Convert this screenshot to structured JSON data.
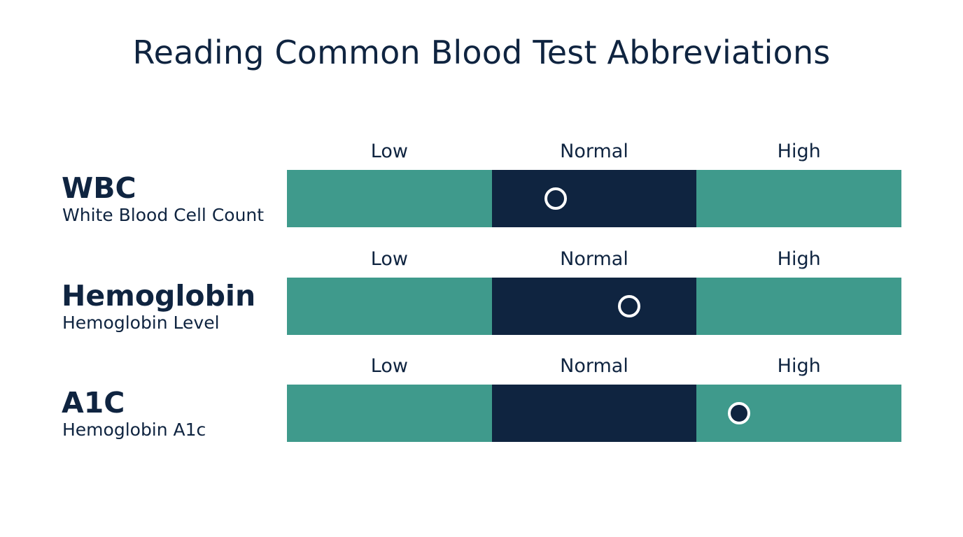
{
  "title": "Reading Common Blood Test Abbreviations",
  "colors": {
    "zone_outer": "#3f9a8c",
    "zone_normal": "#0f2440",
    "marker_ring": "#ffffff",
    "text": "#0f2440"
  },
  "zones": [
    "Low",
    "Normal",
    "High"
  ],
  "tests": [
    {
      "abbreviation": "WBC",
      "full_name": "White Blood Cell Count",
      "result_zone": "Normal",
      "result_position": 0.437
    },
    {
      "abbreviation": "Hemoglobin",
      "full_name": "Hemoglobin Level",
      "result_zone": "Normal",
      "result_position": 0.557
    },
    {
      "abbreviation": "A1C",
      "full_name": "Hemoglobin A1c",
      "result_zone": "High",
      "result_position": 0.736
    }
  ]
}
